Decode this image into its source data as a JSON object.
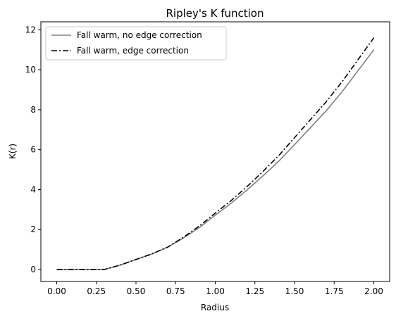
{
  "chart_data": {
    "type": "line",
    "title": "Ripley's K function",
    "xlabel": "Radius",
    "ylabel": "K(r)",
    "xlim": [
      -0.1,
      2.1
    ],
    "ylim": [
      -0.6,
      12.4
    ],
    "xticks": [
      0.0,
      0.25,
      0.5,
      0.75,
      1.0,
      1.25,
      1.5,
      1.75,
      2.0
    ],
    "xtick_labels": [
      "0.00",
      "0.25",
      "0.50",
      "0.75",
      "1.00",
      "1.25",
      "1.50",
      "1.75",
      "2.00"
    ],
    "yticks": [
      0,
      2,
      4,
      6,
      8,
      10,
      12
    ],
    "ytick_labels": [
      "0",
      "2",
      "4",
      "6",
      "8",
      "10",
      "12"
    ],
    "grid": false,
    "legend_position": "upper-left",
    "x": [
      0.0,
      0.1,
      0.2,
      0.3,
      0.4,
      0.5,
      0.6,
      0.7,
      0.8,
      0.9,
      1.0,
      1.1,
      1.2,
      1.3,
      1.4,
      1.5,
      1.6,
      1.7,
      1.8,
      1.9,
      2.0
    ],
    "series": [
      {
        "name": "Fall warm, no edge correction",
        "color": "#808080",
        "style": "solid",
        "values": [
          0.0,
          0.0,
          0.0,
          0.0,
          0.22,
          0.5,
          0.78,
          1.12,
          1.58,
          2.1,
          2.72,
          3.32,
          3.98,
          4.68,
          5.42,
          6.25,
          7.1,
          7.95,
          8.9,
          9.95,
          11.0
        ]
      },
      {
        "name": "Fall warm, edge correction",
        "color": "#000000",
        "style": "dashdot",
        "values": [
          0.0,
          0.0,
          0.0,
          0.0,
          0.22,
          0.5,
          0.78,
          1.12,
          1.62,
          2.18,
          2.82,
          3.45,
          4.15,
          4.9,
          5.7,
          6.6,
          7.5,
          8.4,
          9.4,
          10.5,
          11.6
        ]
      }
    ]
  }
}
